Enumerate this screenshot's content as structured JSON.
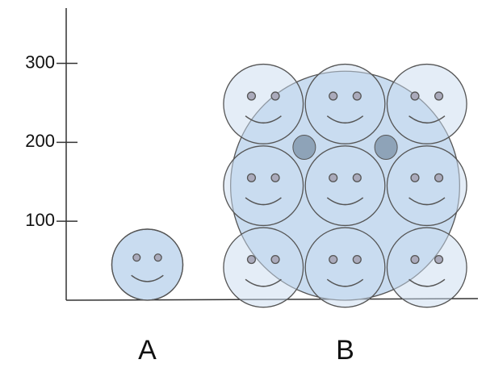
{
  "chart_data": {
    "type": "pictograph",
    "categories": [
      "A",
      "B"
    ],
    "values": [
      90,
      290
    ],
    "color": "#c9dcf0",
    "ylim": [
      0,
      370
    ],
    "yticks": [
      100,
      200,
      300
    ]
  }
}
